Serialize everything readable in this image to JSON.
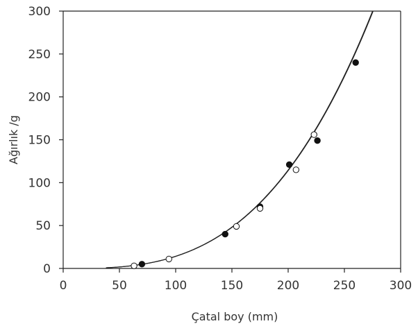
{
  "chart_data": {
    "type": "scatter",
    "title": "",
    "xlabel": "Çatal boy (mm)",
    "ylabel": "Ağırlık /g",
    "xlim": [
      0,
      300
    ],
    "ylim": [
      0,
      300
    ],
    "xticks": [
      "0",
      "50",
      "100",
      "150",
      "200",
      "250",
      "300"
    ],
    "yticks": [
      "0",
      "50",
      "100",
      "150",
      "200",
      "250",
      "300"
    ],
    "grid": false,
    "colors": {
      "filled": "#111111",
      "open": "#ffffff",
      "curve": "#222222",
      "axis": "#222222"
    },
    "series": [
      {
        "marker": "filled-circle",
        "points": [
          {
            "x": 70,
            "y": 5
          },
          {
            "x": 144,
            "y": 40
          },
          {
            "x": 175,
            "y": 72
          },
          {
            "x": 201,
            "y": 121
          },
          {
            "x": 226,
            "y": 149
          },
          {
            "x": 260,
            "y": 240
          }
        ]
      },
      {
        "marker": "open-circle",
        "points": [
          {
            "x": 63,
            "y": 3
          },
          {
            "x": 94,
            "y": 11
          },
          {
            "x": 154,
            "y": 49
          },
          {
            "x": 175,
            "y": 70
          },
          {
            "x": 207,
            "y": 115
          },
          {
            "x": 223,
            "y": 156
          }
        ]
      }
    ],
    "fit_curves": [
      {
        "a": 1.318e-05,
        "b": 3.016,
        "x_start": 38,
        "x_end": 300
      },
      {
        "a": 1.282e-05,
        "b": 3.02,
        "x_start": 38,
        "x_end": 300
      }
    ]
  }
}
